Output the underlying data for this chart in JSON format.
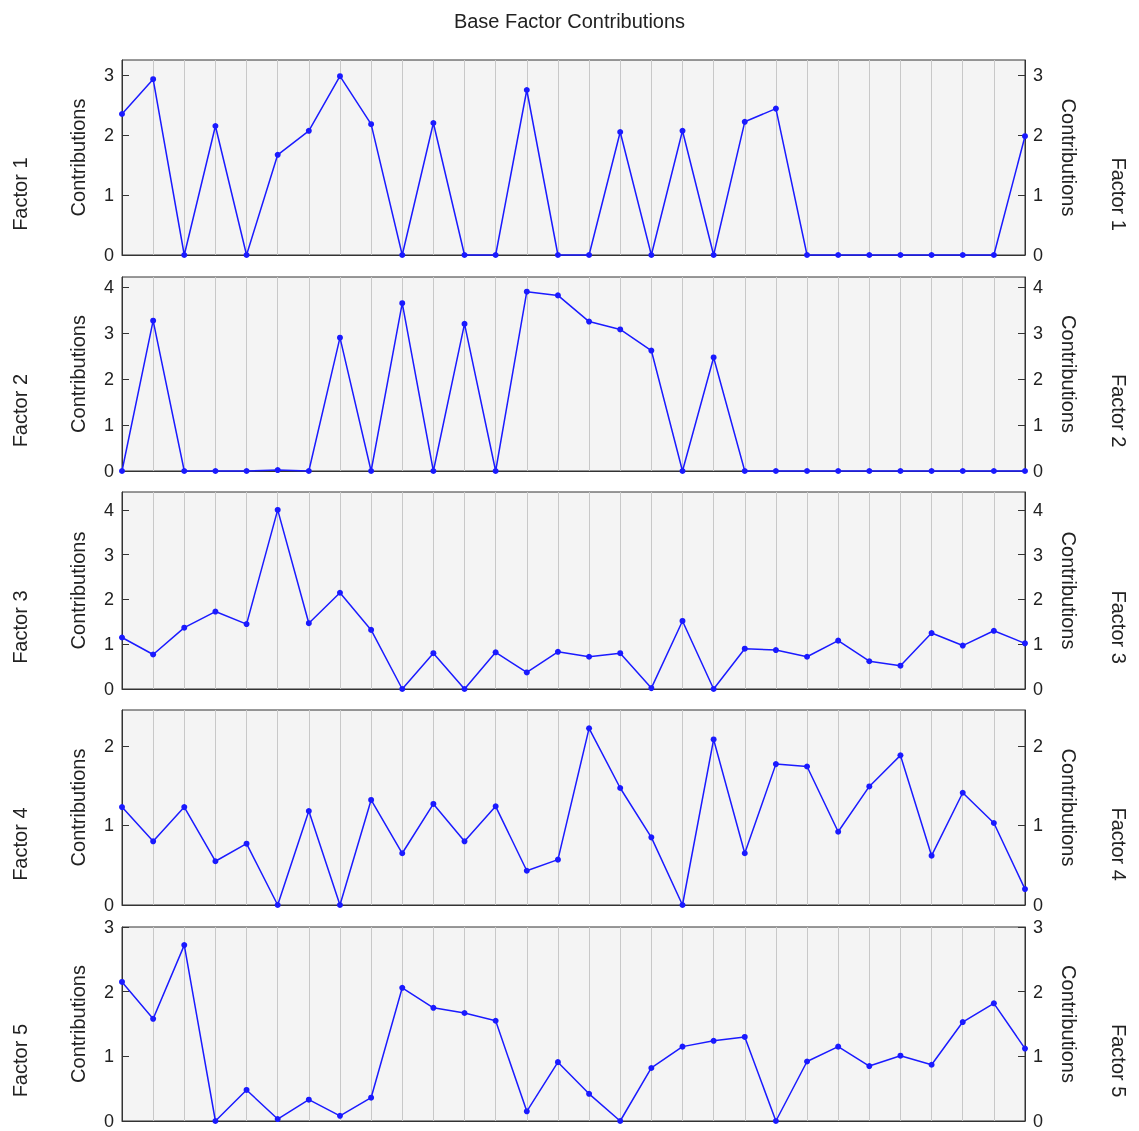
{
  "chart_data": [
    {
      "type": "line",
      "title": "Base Factor Contributions",
      "ylabel": "Contributions",
      "y2label": "Contributions",
      "annotations": [
        "Factor 1",
        "Factor 1"
      ],
      "categories": [
        null,
        null,
        null,
        null,
        null,
        null,
        null,
        null,
        null,
        null,
        null,
        null,
        null,
        null,
        null,
        null,
        null,
        null,
        null,
        null,
        null,
        null,
        null,
        null,
        null,
        null,
        null,
        null,
        null,
        null
      ],
      "series": [
        {
          "color": "#1a1aff",
          "values": [
            2.35,
            2.93,
            0,
            2.15,
            0,
            1.67,
            2.07,
            2.98,
            2.18,
            0,
            2.2,
            0,
            0,
            2.75,
            0,
            0,
            2.05,
            0,
            2.07,
            0,
            2.22,
            2.44,
            0,
            0,
            0,
            0,
            0,
            0,
            0,
            1.98
          ]
        }
      ],
      "ylim": [
        0,
        3.25
      ],
      "yticks": [
        0,
        1,
        2,
        3
      ],
      "y2lim": [
        0,
        3.25
      ],
      "y2ticks": [
        0,
        1,
        2,
        3
      ],
      "grid": "x",
      "marker": "circle",
      "line_style": "solid",
      "tick_labels": "y"
    },
    {
      "type": "line",
      "ylabel": "Contributions",
      "y2label": "Contributions",
      "annotations": [
        "Factor 2",
        "Factor 2"
      ],
      "categories": [
        null,
        null,
        null,
        null,
        null,
        null,
        null,
        null,
        null,
        null,
        null,
        null,
        null,
        null,
        null,
        null,
        null,
        null,
        null,
        null,
        null,
        null,
        null,
        null,
        null,
        null,
        null,
        null,
        null,
        null
      ],
      "series": [
        {
          "color": "#1a1aff",
          "values": [
            0,
            3.27,
            0,
            0,
            0,
            0.02,
            0,
            2.9,
            0,
            3.65,
            0,
            3.2,
            0,
            3.9,
            3.82,
            3.25,
            3.08,
            2.62,
            0,
            2.47,
            0,
            0,
            0,
            0,
            0,
            0,
            0,
            0,
            0,
            0
          ]
        }
      ],
      "ylim": [
        0,
        4.22
      ],
      "yticks": [
        0,
        1,
        2,
        3,
        4
      ],
      "y2lim": [
        0,
        4.22
      ],
      "y2ticks": [
        0,
        1,
        2,
        3,
        4
      ],
      "grid": "x",
      "marker": "circle",
      "line_style": "solid",
      "tick_labels": "y"
    },
    {
      "type": "line",
      "ylabel": "Contributions",
      "y2label": "Contributions",
      "annotations": [
        "Factor 3",
        "Factor 3"
      ],
      "categories": [
        null,
        null,
        null,
        null,
        null,
        null,
        null,
        null,
        null,
        null,
        null,
        null,
        null,
        null,
        null,
        null,
        null,
        null,
        null,
        null,
        null,
        null,
        null,
        null,
        null,
        null,
        null,
        null,
        null,
        null
      ],
      "series": [
        {
          "color": "#1a1aff",
          "values": [
            1.15,
            0.77,
            1.37,
            1.73,
            1.45,
            4.0,
            1.47,
            2.15,
            1.32,
            0,
            0.8,
            0,
            0.82,
            0.37,
            0.83,
            0.72,
            0.8,
            0.02,
            1.52,
            0,
            0.9,
            0.87,
            0.72,
            1.08,
            0.62,
            0.52,
            1.25,
            0.97,
            1.3,
            1.02
          ]
        }
      ],
      "ylim": [
        0,
        4.4
      ],
      "yticks": [
        0,
        1,
        2,
        3,
        4
      ],
      "y2lim": [
        0,
        4.4
      ],
      "y2ticks": [
        0,
        1,
        2,
        3,
        4
      ],
      "grid": "x",
      "marker": "circle",
      "line_style": "solid",
      "tick_labels": "y"
    },
    {
      "type": "line",
      "ylabel": "Contributions",
      "y2label": "Contributions",
      "annotations": [
        "Factor 4",
        "Factor 4"
      ],
      "categories": [
        null,
        null,
        null,
        null,
        null,
        null,
        null,
        null,
        null,
        null,
        null,
        null,
        null,
        null,
        null,
        null,
        null,
        null,
        null,
        null,
        null,
        null,
        null,
        null,
        null,
        null,
        null,
        null,
        null,
        null
      ],
      "series": [
        {
          "color": "#1a1aff",
          "values": [
            1.23,
            0.8,
            1.23,
            0.55,
            0.77,
            0,
            1.18,
            0,
            1.32,
            0.65,
            1.27,
            0.8,
            1.24,
            0.43,
            0.57,
            2.22,
            1.47,
            0.85,
            0,
            2.08,
            0.65,
            1.77,
            1.74,
            0.92,
            1.49,
            1.88,
            0.62,
            1.41,
            1.03,
            0.2
          ]
        }
      ],
      "ylim": [
        0,
        2.45
      ],
      "yticks": [
        0,
        1,
        2
      ],
      "y2lim": [
        0,
        2.45
      ],
      "y2ticks": [
        0,
        1,
        2
      ],
      "grid": "x",
      "marker": "circle",
      "line_style": "solid",
      "tick_labels": "y"
    },
    {
      "type": "line",
      "ylabel": "Contributions",
      "y2label": "Contributions",
      "annotations": [
        "Factor 5",
        "Factor 5"
      ],
      "categories": [
        null,
        null,
        null,
        null,
        null,
        null,
        null,
        null,
        null,
        null,
        null,
        null,
        null,
        null,
        null,
        null,
        null,
        null,
        null,
        null,
        null,
        null,
        null,
        null,
        null,
        null,
        null,
        null,
        null,
        null
      ],
      "series": [
        {
          "color": "#1a1aff",
          "values": [
            2.15,
            1.58,
            2.72,
            0,
            0.48,
            0.03,
            0.33,
            0.08,
            0.36,
            2.06,
            1.75,
            1.67,
            1.55,
            0.15,
            0.91,
            0.42,
            0,
            0.82,
            1.15,
            1.24,
            1.3,
            0,
            0.92,
            1.15,
            0.85,
            1.01,
            0.87,
            1.53,
            1.82,
            1.12
          ]
        }
      ],
      "ylim": [
        0,
        3
      ],
      "yticks": [
        0,
        1,
        2,
        3
      ],
      "y2lim": [
        0,
        3
      ],
      "y2ticks": [
        0,
        1,
        2,
        3
      ],
      "grid": "x",
      "marker": "circle",
      "line_style": "solid",
      "tick_labels": "y"
    }
  ]
}
